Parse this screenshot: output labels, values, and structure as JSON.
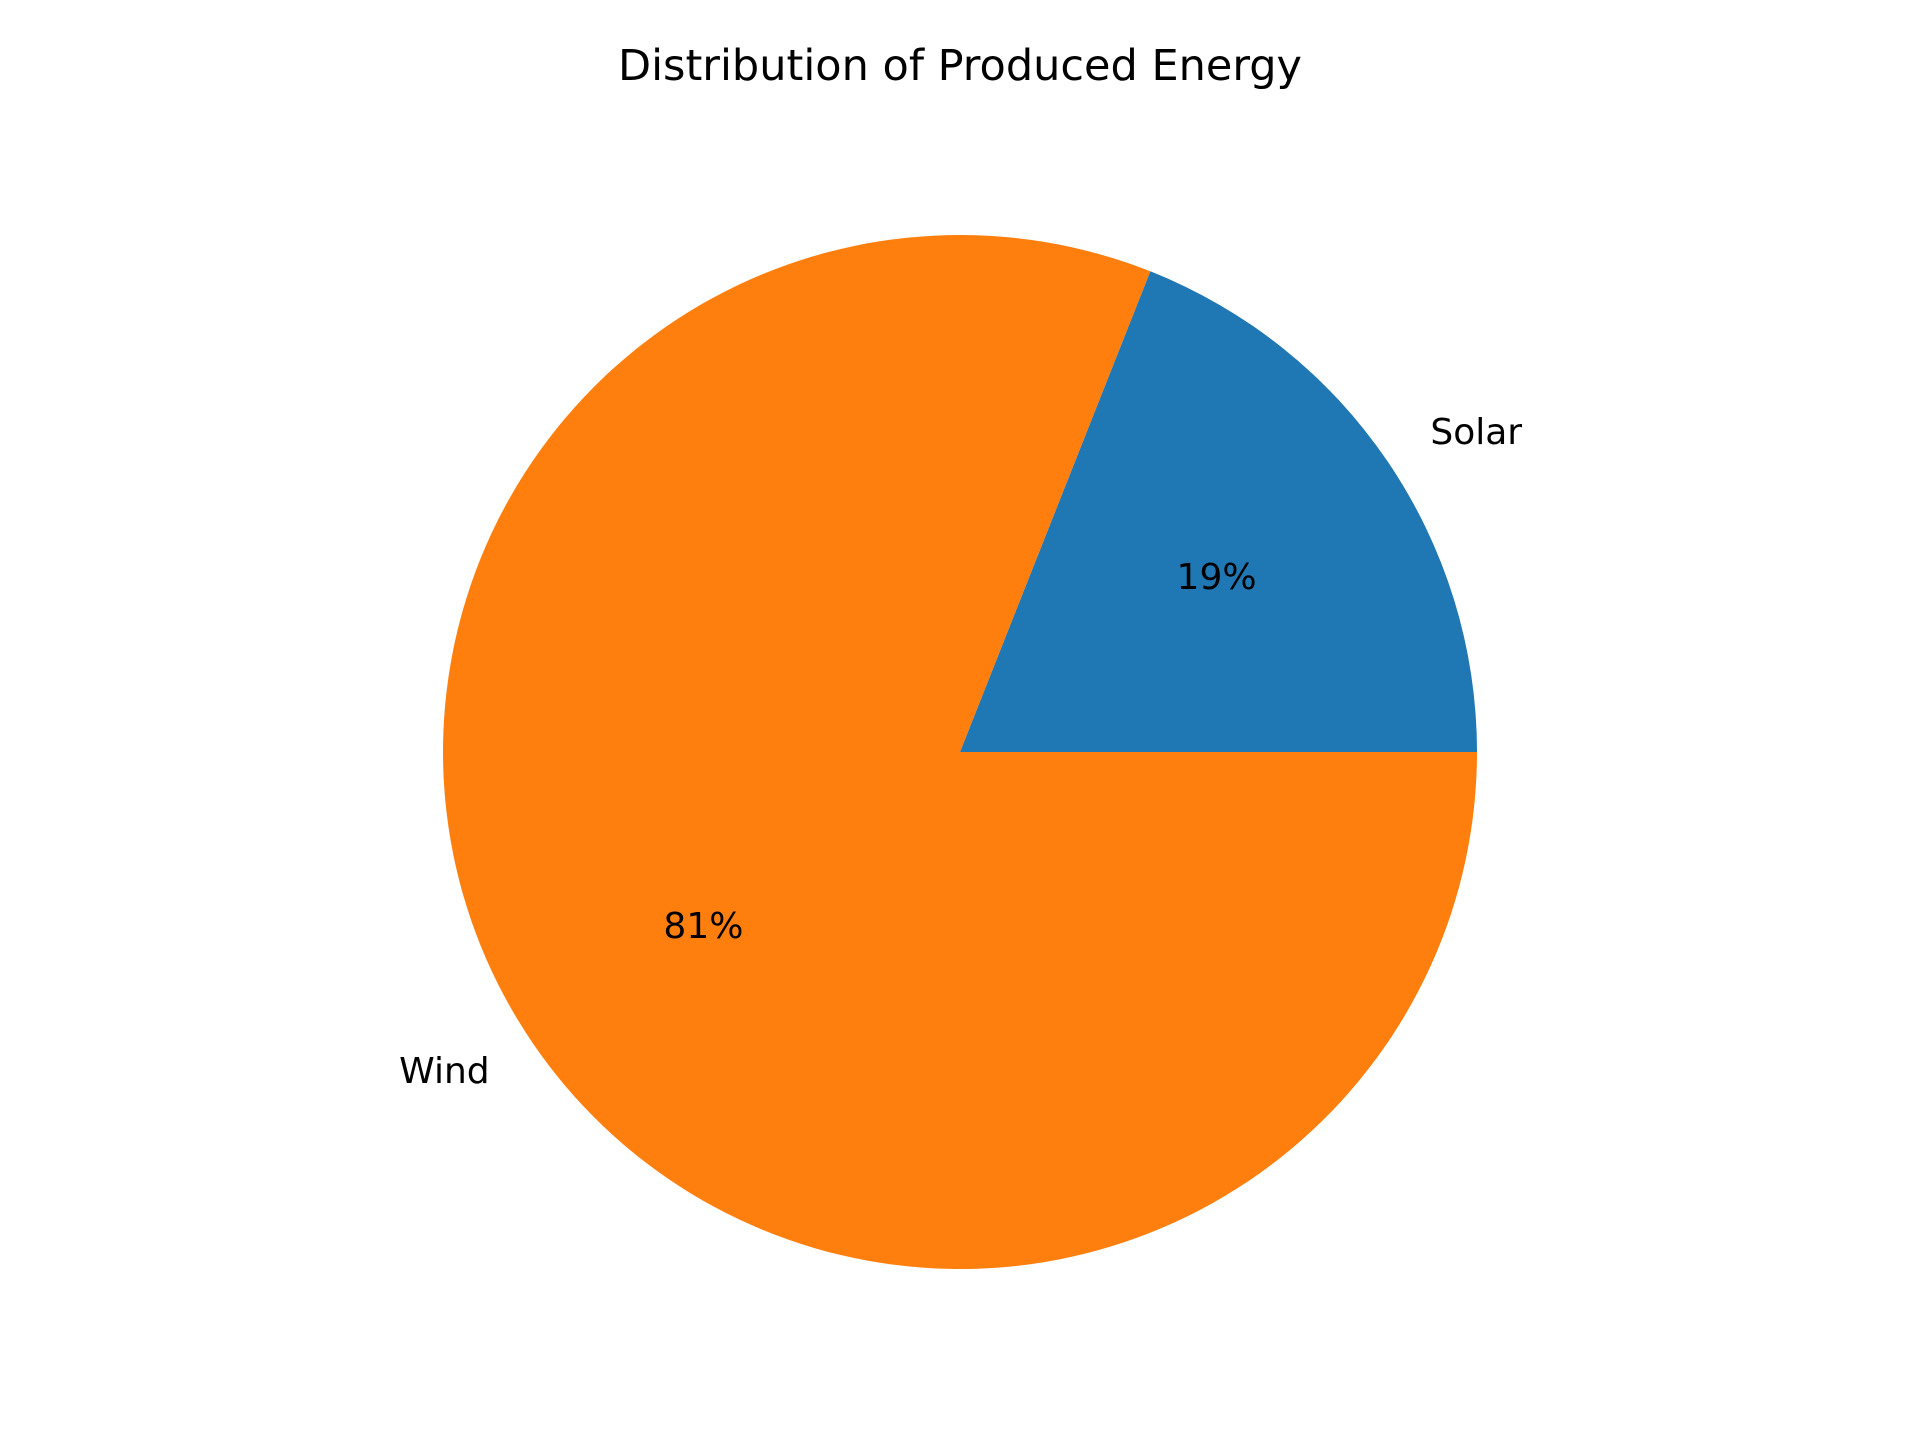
{
  "chart_data": {
    "type": "pie",
    "title": "Distribution of Produced Energy",
    "labels": [
      "Solar",
      "Wind"
    ],
    "values": [
      19,
      81
    ],
    "percent_labels": [
      "19%",
      "81%"
    ],
    "colors": [
      "#1f77b4",
      "#ff7f0e"
    ],
    "start_angle": 0,
    "direction": "counterclockwise",
    "legend": "none"
  }
}
